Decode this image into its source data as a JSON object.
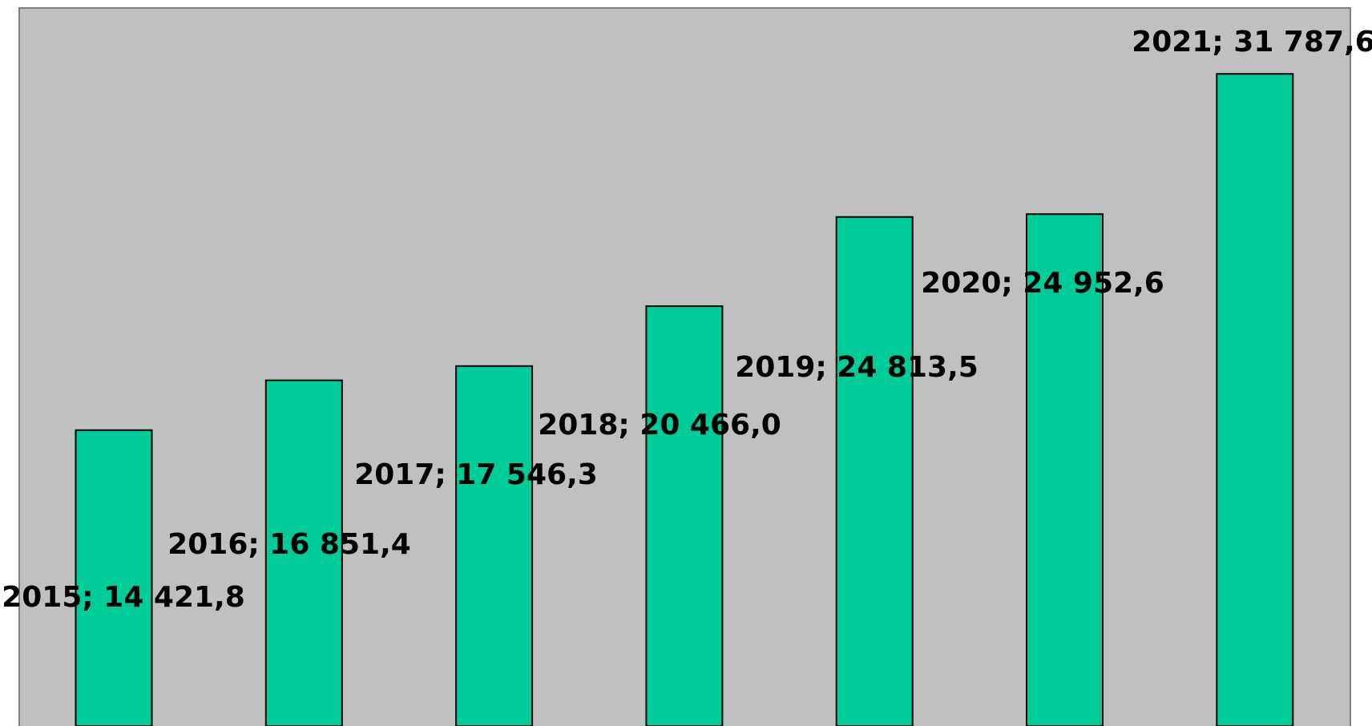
{
  "chart_data": {
    "type": "bar",
    "values": [
      14421.8,
      16851.4,
      17546.3,
      20466.0,
      24813.5,
      24952.6,
      31787.6
    ],
    "value_labels": [
      "2015; 14 421,8",
      "2016; 16 851,4",
      "2017; 17 546,3",
      "2018; 20 466,0",
      "2019; 24 813,5",
      "2020; 24 952,6",
      "2021; 31 787,6"
    ],
    "color": "#00cc99",
    "ylim": [
      0,
      35000
    ]
  }
}
